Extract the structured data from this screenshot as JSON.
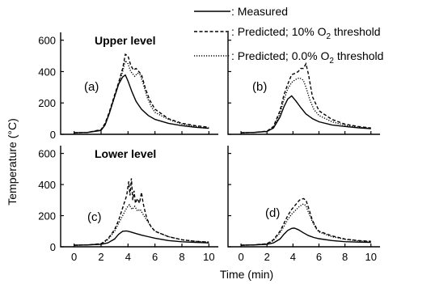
{
  "chart_data": {
    "type": "line",
    "ylabel": "Temperature (°C)",
    "xlabel": "Time (min)",
    "xlim": [
      -1,
      10.7
    ],
    "ylim": [
      0,
      650
    ],
    "x_ticks": [
      "0",
      "2",
      "4",
      "6",
      "8",
      "10"
    ],
    "y_ticks": [
      "0",
      "200",
      "400",
      "600"
    ],
    "legend": {
      "position": "top-right",
      "entries": [
        {
          "key": "measured",
          "label": ": Measured"
        },
        {
          "key": "p10",
          "label_pre": ": Predicted; 10% O",
          "label_sub": "2",
          "label_post": " threshold"
        },
        {
          "key": "p00",
          "label_pre": ": Predicted; 0.0% O",
          "label_sub": "2",
          "label_post": " threshold"
        }
      ]
    },
    "row_titles": [
      "Upper level",
      "Lower level"
    ],
    "panels": [
      {
        "id": "(a)",
        "series": [
          {
            "key": "measured",
            "x": [
              0,
              1,
              2,
              2.3,
              2.6,
              3,
              3.3,
              3.6,
              3.8,
              4,
              4.3,
              4.6,
              5,
              5.5,
              6,
              7,
              8,
              9,
              10
            ],
            "y": [
              10,
              12,
              25,
              60,
              130,
              240,
              320,
              365,
              378,
              340,
              270,
              210,
              160,
              120,
              95,
              70,
              55,
              45,
              38
            ]
          },
          {
            "key": "p10",
            "x": [
              0,
              1,
              2,
              2.3,
              2.6,
              3,
              3.3,
              3.6,
              3.8,
              4,
              4.2,
              4.4,
              4.6,
              4.8,
              5,
              5.3,
              5.6,
              6,
              7,
              8,
              9,
              10
            ],
            "y": [
              10,
              12,
              30,
              70,
              140,
              250,
              330,
              420,
              510,
              500,
              440,
              410,
              420,
              400,
              380,
              290,
              220,
              160,
              100,
              70,
              55,
              45
            ]
          },
          {
            "key": "p00",
            "x": [
              0,
              1,
              2,
              2.3,
              2.6,
              3,
              3.3,
              3.6,
              3.8,
              4,
              4.2,
              4.5,
              4.7,
              4.9,
              5.1,
              5.4,
              5.7,
              6,
              7,
              8,
              9,
              10
            ],
            "y": [
              10,
              12,
              28,
              65,
              130,
              240,
              320,
              400,
              470,
              450,
              400,
              370,
              390,
              380,
              330,
              240,
              180,
              140,
              95,
              65,
              50,
              40
            ]
          }
        ]
      },
      {
        "id": "(b)",
        "series": [
          {
            "key": "measured",
            "x": [
              0,
              1,
              2,
              2.5,
              3,
              3.3,
              3.6,
              3.9,
              4.2,
              4.6,
              5,
              5.5,
              6,
              7,
              8,
              9,
              10
            ],
            "y": [
              10,
              12,
              18,
              40,
              110,
              175,
              225,
              245,
              215,
              170,
              130,
              100,
              80,
              60,
              50,
              42,
              36
            ]
          },
          {
            "key": "p10",
            "x": [
              0,
              1,
              2,
              2.5,
              3,
              3.3,
              3.6,
              3.9,
              4.2,
              4.4,
              4.6,
              4.8,
              5,
              5.2,
              5.5,
              6,
              7,
              8,
              9,
              10
            ],
            "y": [
              10,
              12,
              20,
              50,
              150,
              250,
              320,
              380,
              390,
              400,
              420,
              420,
              450,
              380,
              240,
              150,
              95,
              65,
              50,
              40
            ]
          },
          {
            "key": "p00",
            "x": [
              0,
              1,
              2,
              2.5,
              3,
              3.3,
              3.6,
              3.9,
              4.2,
              4.5,
              4.8,
              5,
              5.3,
              5.6,
              6,
              7,
              8,
              9,
              10
            ],
            "y": [
              10,
              12,
              18,
              45,
              130,
              220,
              290,
              330,
              350,
              360,
              345,
              300,
              220,
              160,
              120,
              80,
              58,
              45,
              38
            ]
          }
        ]
      },
      {
        "id": "(c)",
        "series": [
          {
            "key": "measured",
            "x": [
              0,
              1,
              2,
              2.5,
              3,
              3.3,
              3.6,
              3.9,
              4.2,
              4.6,
              5,
              5.5,
              6,
              7,
              8,
              9,
              10
            ],
            "y": [
              10,
              12,
              16,
              25,
              50,
              80,
              100,
              102,
              95,
              85,
              75,
              65,
              55,
              40,
              32,
              28,
              25
            ]
          },
          {
            "key": "p10",
            "x": [
              0,
              1,
              2,
              2.5,
              3,
              3.3,
              3.6,
              3.9,
              4.05,
              4.15,
              4.25,
              4.35,
              4.45,
              4.55,
              4.7,
              4.85,
              5,
              5.1,
              5.2,
              5.4,
              5.7,
              6,
              7,
              8,
              9,
              10
            ],
            "y": [
              10,
              12,
              20,
              50,
              110,
              170,
              250,
              330,
              420,
              330,
              440,
              300,
              360,
              280,
              310,
              280,
              350,
              290,
              250,
              180,
              130,
              100,
              65,
              45,
              35,
              30
            ]
          },
          {
            "key": "p00",
            "x": [
              0,
              1,
              2,
              2.5,
              3,
              3.3,
              3.6,
              3.9,
              4.1,
              4.3,
              4.5,
              4.7,
              4.9,
              5.1,
              5.4,
              5.7,
              6,
              7,
              8,
              9,
              10
            ],
            "y": [
              10,
              12,
              18,
              45,
              100,
              150,
              200,
              250,
              270,
              240,
              260,
              230,
              240,
              210,
              170,
              130,
              100,
              65,
              45,
              35,
              30
            ]
          }
        ]
      },
      {
        "id": "(d)",
        "series": [
          {
            "key": "measured",
            "x": [
              0,
              1,
              2,
              2.5,
              3,
              3.3,
              3.6,
              3.9,
              4.1,
              4.4,
              4.8,
              5.2,
              5.6,
              6,
              7,
              8,
              9,
              10
            ],
            "y": [
              10,
              12,
              16,
              25,
              50,
              80,
              105,
              118,
              120,
              110,
              90,
              72,
              60,
              52,
              40,
              33,
              30,
              28
            ]
          },
          {
            "key": "p10",
            "x": [
              0,
              1,
              2,
              2.5,
              3,
              3.3,
              3.6,
              3.9,
              4.2,
              4.5,
              4.8,
              5,
              5.2,
              5.5,
              5.8,
              6,
              7,
              8,
              9,
              10
            ],
            "y": [
              10,
              12,
              20,
              45,
              100,
              150,
              200,
              240,
              270,
              300,
              310,
              300,
              250,
              170,
              120,
              100,
              70,
              50,
              40,
              35
            ]
          },
          {
            "key": "p00",
            "x": [
              0,
              1,
              2,
              2.5,
              3,
              3.3,
              3.6,
              3.9,
              4.2,
              4.5,
              4.8,
              5,
              5.2,
              5.5,
              5.8,
              6,
              7,
              8,
              9,
              10
            ],
            "y": [
              10,
              12,
              18,
              40,
              90,
              130,
              175,
              210,
              235,
              260,
              275,
              265,
              220,
              160,
              115,
              95,
              65,
              48,
              38,
              32
            ]
          }
        ]
      }
    ]
  }
}
